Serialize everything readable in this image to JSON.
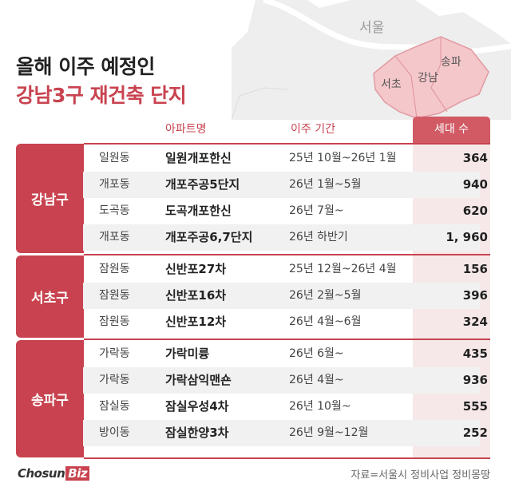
{
  "map": {
    "city_label": "서울",
    "districts": [
      "서초",
      "강남",
      "송파"
    ]
  },
  "title": {
    "line1": "올해 이주 예정인",
    "line2": "강남3구 재건축 단지"
  },
  "table": {
    "headers": {
      "apartment": "아파트명",
      "period": "이주 기간",
      "households": "세대 수"
    },
    "groups": [
      {
        "district": "강남구",
        "rows": [
          {
            "dong": "일원동",
            "apartment": "일원개포한신",
            "period": "25년 10월~26년 1월",
            "households": "364"
          },
          {
            "dong": "개포동",
            "apartment": "개포주공5단지",
            "period": "26년 1월~5월",
            "households": "940"
          },
          {
            "dong": "도곡동",
            "apartment": "도곡개포한신",
            "period": "26년 7월~",
            "households": "620"
          },
          {
            "dong": "개포동",
            "apartment": "개포주공6,7단지",
            "period": "26년 하반기",
            "households": "1, 960"
          }
        ]
      },
      {
        "district": "서초구",
        "rows": [
          {
            "dong": "잠원동",
            "apartment": "신반포27차",
            "period": "25년 12월~26년 4월",
            "households": "156"
          },
          {
            "dong": "잠원동",
            "apartment": "신반포16차",
            "period": "26년 2월~5월",
            "households": "396"
          },
          {
            "dong": "잠원동",
            "apartment": "신반포12차",
            "period": "26년 4월~6월",
            "households": "324"
          }
        ]
      },
      {
        "district": "송파구",
        "rows": [
          {
            "dong": "가락동",
            "apartment": "가락미륭",
            "period": "26년 6월~",
            "households": "435"
          },
          {
            "dong": "가락동",
            "apartment": "가락삼익맨숀",
            "period": "26년 4월~",
            "households": "936"
          },
          {
            "dong": "잠실동",
            "apartment": "잠실우성4차",
            "period": "26년 10월~",
            "households": "555"
          },
          {
            "dong": "방이동",
            "apartment": "잠실한양3차",
            "period": "26년 9월~12월",
            "households": "252"
          }
        ]
      }
    ]
  },
  "footer": {
    "logo_main": "Chosun",
    "logo_biz": "Biz",
    "source": "자료=서울시 정비사업 정비몽땅"
  },
  "colors": {
    "accent": "#c8434f",
    "count_bg": "#f6e8e9",
    "map_highlight": "#f4c7cb"
  }
}
